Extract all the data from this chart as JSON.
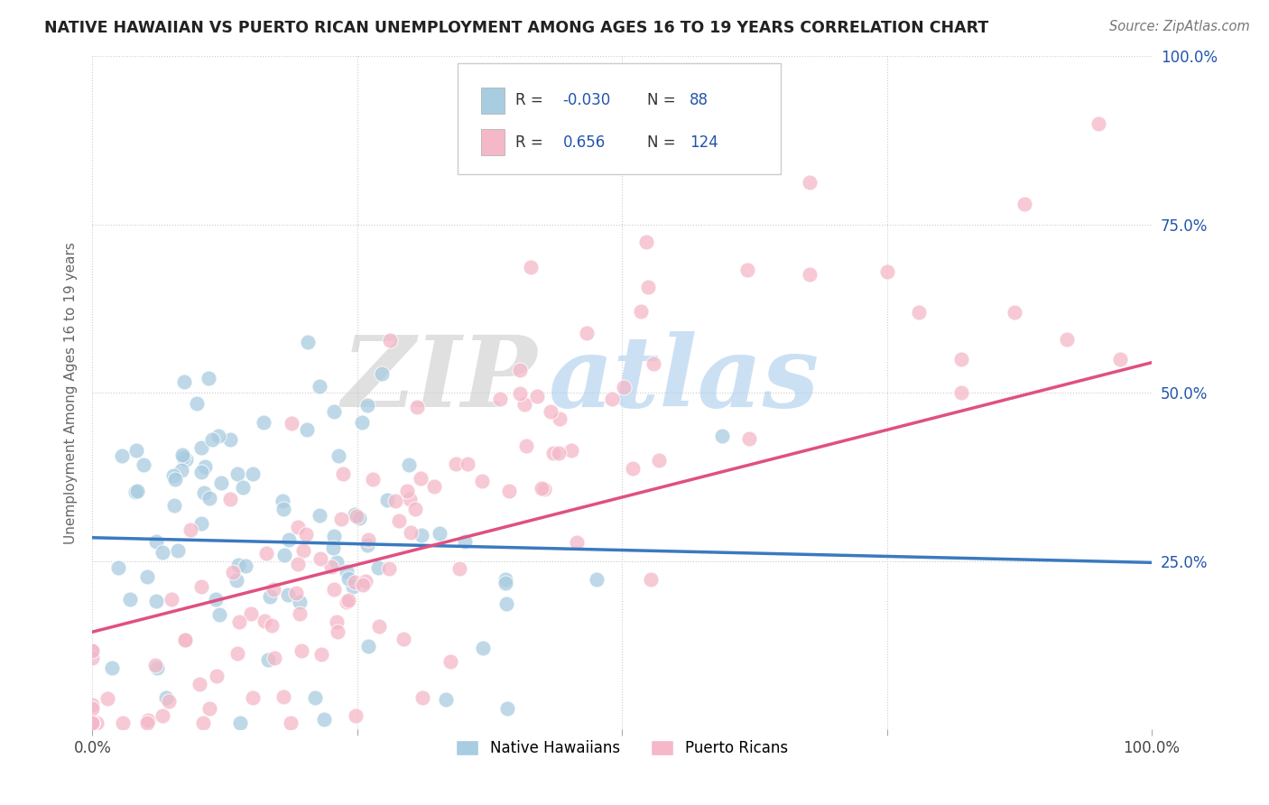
{
  "title": "NATIVE HAWAIIAN VS PUERTO RICAN UNEMPLOYMENT AMONG AGES 16 TO 19 YEARS CORRELATION CHART",
  "source": "Source: ZipAtlas.com",
  "ylabel": "Unemployment Among Ages 16 to 19 years",
  "xmin": 0.0,
  "xmax": 1.0,
  "ymin": 0.0,
  "ymax": 1.0,
  "xticks": [
    0.0,
    0.25,
    0.5,
    0.75,
    1.0
  ],
  "xticklabels": [
    "0.0%",
    "",
    "",
    "",
    "100.0%"
  ],
  "yticks": [
    0.0,
    0.25,
    0.5,
    0.75,
    1.0
  ],
  "yticklabels_right": [
    "",
    "25.0%",
    "50.0%",
    "75.0%",
    "100.0%"
  ],
  "native_hawaiian_color": "#a8cce0",
  "puerto_rican_color": "#f4b8c8",
  "native_hawaiian_line_color": "#3a7abf",
  "puerto_rican_line_color": "#e05080",
  "native_hawaiian_R": -0.03,
  "native_hawaiian_N": 88,
  "puerto_rican_R": 0.656,
  "puerto_rican_N": 124,
  "watermark_zip": "ZIP",
  "watermark_atlas": "atlas",
  "watermark_zip_color": "#cccccc",
  "watermark_atlas_color": "#aaccee",
  "background_color": "#ffffff",
  "grid_color": "#cccccc",
  "native_hawaiians_label": "Native Hawaiians",
  "puerto_ricans_label": "Puerto Ricans",
  "legend_blue": "#2255aa",
  "seed": 42,
  "nh_line_start_y": 0.285,
  "nh_line_end_y": 0.248,
  "pr_line_start_y": 0.145,
  "pr_line_end_y": 0.545
}
